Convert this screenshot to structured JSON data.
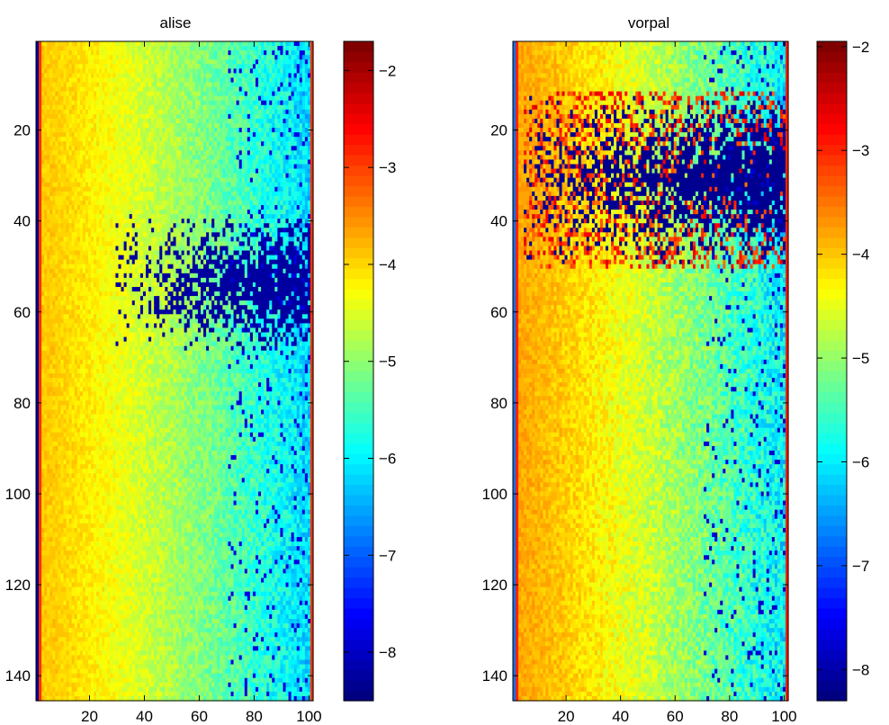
{
  "chart_data": [
    {
      "type": "heatmap",
      "title": "alise",
      "xlabel": "",
      "ylabel": "",
      "x_range": [
        1,
        101
      ],
      "y_range": [
        1,
        145
      ],
      "y_reversed": true,
      "x_ticks": [
        20,
        40,
        60,
        80,
        100
      ],
      "y_ticks": [
        20,
        40,
        60,
        80,
        100,
        120,
        140
      ],
      "colormap": "jet",
      "colorbar": {
        "clim": [
          -8.5,
          -1.7
        ],
        "ticks": [
          -8,
          -7,
          -6,
          -5,
          -4,
          -3,
          -2
        ],
        "tick_labels": [
          "−8",
          "−7",
          "−6",
          "−5",
          "−4",
          "−3",
          "−2"
        ]
      },
      "tick_labels_x": [
        "20",
        "40",
        "60",
        "80",
        "100"
      ],
      "tick_labels_y": [
        "20",
        "40",
        "60",
        "80",
        "100",
        "120",
        "140"
      ],
      "pattern": {
        "first_column_value": -8.3,
        "edge_columns_value": -2.9,
        "left_value": -3.9,
        "right_value": -6.2,
        "noise": 0.35,
        "dark_band_rows": [
          38,
          70
        ],
        "dark_band_value": -8.3,
        "dark_band_start_col": 30
      }
    },
    {
      "type": "heatmap",
      "title": "vorpal",
      "xlabel": "",
      "ylabel": "",
      "x_range": [
        1,
        101
      ],
      "y_range": [
        1,
        145
      ],
      "y_reversed": true,
      "x_ticks": [
        20,
        40,
        60,
        80,
        100
      ],
      "y_ticks": [
        20,
        40,
        60,
        80,
        100,
        120,
        140
      ],
      "colormap": "jet",
      "colorbar": {
        "clim": [
          -8.3,
          -1.95
        ],
        "ticks": [
          -8,
          -7,
          -6,
          -5,
          -4,
          -3,
          -2
        ],
        "tick_labels": [
          "−8",
          "−7",
          "−6",
          "−5",
          "−4",
          "−3",
          "−2"
        ]
      },
      "tick_labels_x": [
        "20",
        "40",
        "60",
        "80",
        "100"
      ],
      "tick_labels_y": [
        "20",
        "40",
        "60",
        "80",
        "100",
        "120",
        "140"
      ],
      "pattern": {
        "first_column_value": -6.8,
        "edge_columns_value": -3.0,
        "left_value": -3.8,
        "right_value": -6.0,
        "noise": 0.4,
        "dark_band_rows": [
          12,
          50
        ],
        "dark_band_value": -8.2,
        "dark_band_start_col": 5
      }
    }
  ]
}
